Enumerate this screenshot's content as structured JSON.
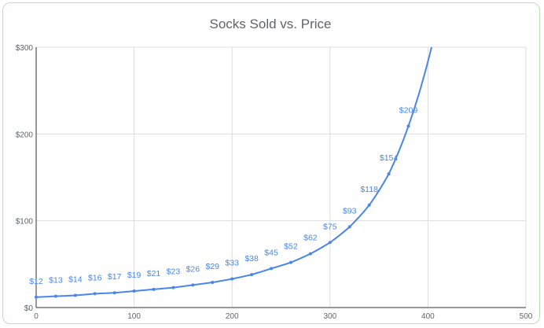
{
  "chart_data": {
    "type": "line",
    "title": "Socks Sold vs. Price",
    "xlabel": "",
    "ylabel": "",
    "xlim": [
      0,
      500
    ],
    "ylim": [
      0,
      300
    ],
    "x_ticks": [
      "0",
      "100",
      "200",
      "300",
      "400",
      "500"
    ],
    "y_ticks": [
      "$0",
      "$100",
      "$200",
      "$300"
    ],
    "grid": true,
    "legend": "none",
    "color": "#4a86e8",
    "x": [
      0,
      20,
      40,
      60,
      80,
      100,
      120,
      140,
      160,
      180,
      200,
      220,
      240,
      260,
      280,
      300,
      320,
      340,
      360,
      380
    ],
    "values": [
      12,
      13,
      14,
      16,
      17,
      19,
      21,
      23,
      26,
      29,
      33,
      38,
      45,
      52,
      62,
      75,
      93,
      118,
      154,
      209
    ],
    "data_labels": [
      "$12",
      "$13",
      "$14",
      "$16",
      "$17",
      "$19",
      "$21",
      "$23",
      "$26",
      "$29",
      "$33",
      "$38",
      "$45",
      "$52",
      "$62",
      "$75",
      "$93",
      "$118",
      "$154",
      "$209"
    ]
  }
}
